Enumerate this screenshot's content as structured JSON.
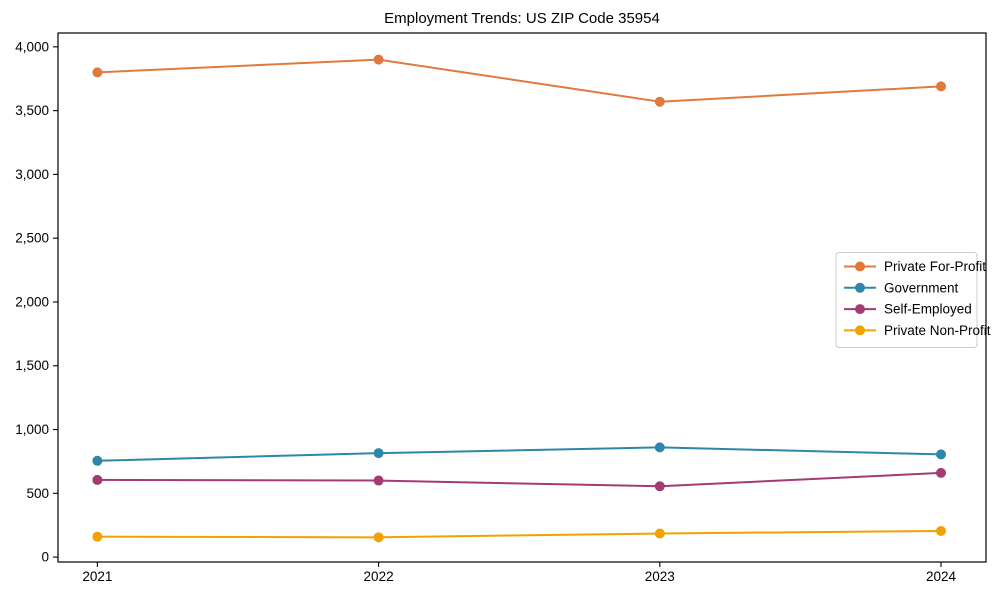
{
  "chart_data": {
    "type": "line",
    "title": "Employment Trends: US ZIP Code 35954",
    "x": [
      2021,
      2022,
      2023,
      2024
    ],
    "x_tick_labels": [
      "2021",
      "2022",
      "2023",
      "2024"
    ],
    "y_ticks": [
      0,
      500,
      1000,
      1500,
      2000,
      2500,
      3000,
      3500,
      4000
    ],
    "y_tick_labels": [
      "0",
      "500",
      "1,000",
      "1,500",
      "2,000",
      "2,500",
      "3,000",
      "3,500",
      "4,000"
    ],
    "xlim": [
      2020.86,
      2024.16
    ],
    "ylim": [
      -38.5,
      4108.5
    ],
    "grid": false,
    "legend_position": "center-right",
    "marker": "circle",
    "series": [
      {
        "name": "Private For-Profit",
        "color": "#E0793C",
        "values": [
          3800,
          3900,
          3570,
          3690
        ]
      },
      {
        "name": "Government",
        "color": "#2E86AB",
        "values": [
          755,
          815,
          860,
          805
        ]
      },
      {
        "name": "Self-Employed",
        "color": "#A23B72",
        "values": [
          605,
          600,
          555,
          660
        ]
      },
      {
        "name": "Private Non-Profit",
        "color": "#F0A202",
        "values": [
          160,
          155,
          185,
          205
        ]
      }
    ],
    "colors": {
      "axis": "#000000",
      "legend_border": "#cccccc",
      "background": "#ffffff"
    }
  }
}
